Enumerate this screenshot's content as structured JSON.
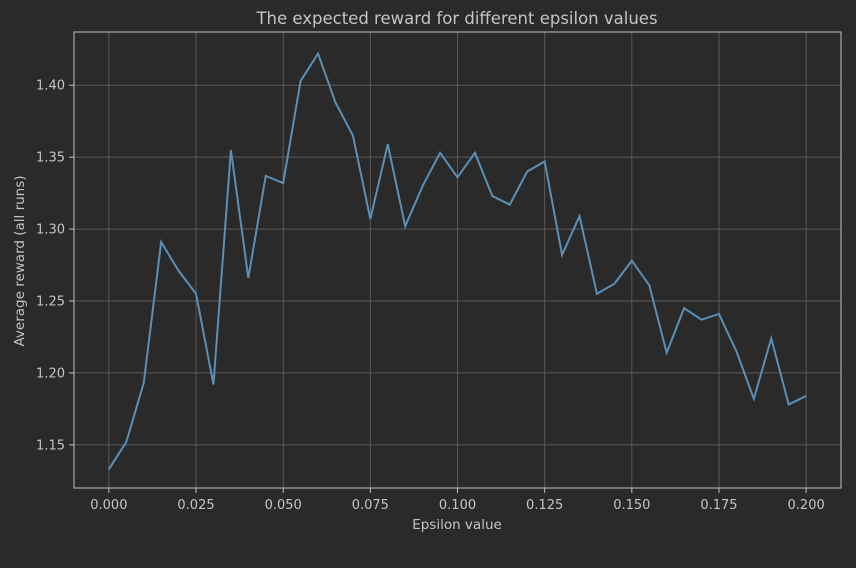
{
  "chart_data": {
    "type": "line",
    "title": "The expected reward for different epsilon values",
    "xlabel": "Epsilon value",
    "ylabel": "Average reward (all runs)",
    "xlim": [
      -0.01,
      0.21
    ],
    "ylim": [
      1.12,
      1.437
    ],
    "grid": true,
    "x_ticks": [
      0.0,
      0.025,
      0.05,
      0.075,
      0.1,
      0.125,
      0.15,
      0.175,
      0.2
    ],
    "x_tick_labels": [
      "0.000",
      "0.025",
      "0.050",
      "0.075",
      "0.100",
      "0.125",
      "0.150",
      "0.175",
      "0.200"
    ],
    "y_ticks": [
      1.15,
      1.2,
      1.25,
      1.3,
      1.35,
      1.4
    ],
    "y_tick_labels": [
      "1.15",
      "1.20",
      "1.25",
      "1.30",
      "1.35",
      "1.40"
    ],
    "colors": {
      "background": "#2a2a2a",
      "line": "#5b8fb5",
      "grid": "#5a5a5a",
      "text": "#c4c4c4"
    },
    "series": [
      {
        "x": [
          0.0,
          0.005,
          0.01,
          0.015,
          0.02,
          0.025,
          0.03,
          0.035,
          0.04,
          0.045,
          0.05,
          0.055,
          0.06,
          0.065,
          0.07,
          0.075,
          0.08,
          0.085,
          0.09,
          0.095,
          0.1,
          0.105,
          0.11,
          0.115,
          0.12,
          0.125,
          0.13,
          0.135,
          0.14,
          0.145,
          0.15,
          0.155,
          0.16,
          0.165,
          0.17,
          0.175,
          0.18,
          0.185,
          0.19,
          0.195,
          0.2
        ],
        "y": [
          1.133,
          1.152,
          1.193,
          1.291,
          1.271,
          1.255,
          1.192,
          1.355,
          1.266,
          1.337,
          1.332,
          1.403,
          1.422,
          1.388,
          1.365,
          1.307,
          1.359,
          1.302,
          1.33,
          1.353,
          1.336,
          1.353,
          1.323,
          1.317,
          1.34,
          1.347,
          1.282,
          1.309,
          1.255,
          1.262,
          1.278,
          1.261,
          1.214,
          1.245,
          1.237,
          1.241,
          1.215,
          1.182,
          1.224,
          1.178,
          1.184
        ]
      }
    ]
  }
}
